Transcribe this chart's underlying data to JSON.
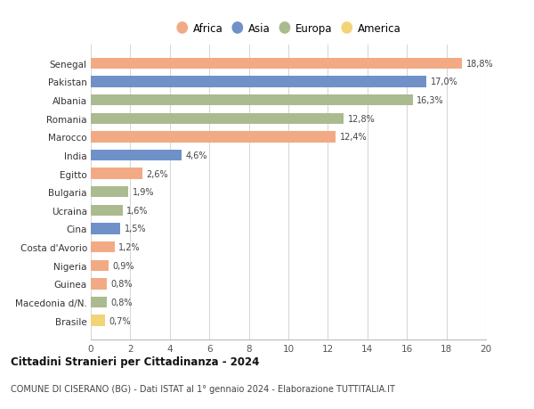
{
  "categories": [
    "Brasile",
    "Macedonia d/N.",
    "Guinea",
    "Nigeria",
    "Costa d'Avorio",
    "Cina",
    "Ucraina",
    "Bulgaria",
    "Egitto",
    "India",
    "Marocco",
    "Romania",
    "Albania",
    "Pakistan",
    "Senegal"
  ],
  "values": [
    0.7,
    0.8,
    0.8,
    0.9,
    1.2,
    1.5,
    1.6,
    1.9,
    2.6,
    4.6,
    12.4,
    12.8,
    16.3,
    17.0,
    18.8
  ],
  "labels": [
    "0,7%",
    "0,8%",
    "0,8%",
    "0,9%",
    "1,2%",
    "1,5%",
    "1,6%",
    "1,9%",
    "2,6%",
    "4,6%",
    "12,4%",
    "12,8%",
    "16,3%",
    "17,0%",
    "18,8%"
  ],
  "continents": [
    "America",
    "Europa",
    "Africa",
    "Africa",
    "Africa",
    "Asia",
    "Europa",
    "Europa",
    "Africa",
    "Asia",
    "Africa",
    "Europa",
    "Europa",
    "Asia",
    "Africa"
  ],
  "continent_colors": {
    "Africa": "#F2AA84",
    "Asia": "#7090C8",
    "Europa": "#AABB90",
    "America": "#F2D478"
  },
  "legend_order": [
    "Africa",
    "Asia",
    "Europa",
    "America"
  ],
  "xlim": [
    0,
    20
  ],
  "xticks": [
    0,
    2,
    4,
    6,
    8,
    10,
    12,
    14,
    16,
    18,
    20
  ],
  "title_bold": "Cittadini Stranieri per Cittadinanza - 2024",
  "subtitle": "COMUNE DI CISERANO (BG) - Dati ISTAT al 1° gennaio 2024 - Elaborazione TUTTITALIA.IT",
  "background_color": "#ffffff",
  "grid_color": "#d8d8d8"
}
